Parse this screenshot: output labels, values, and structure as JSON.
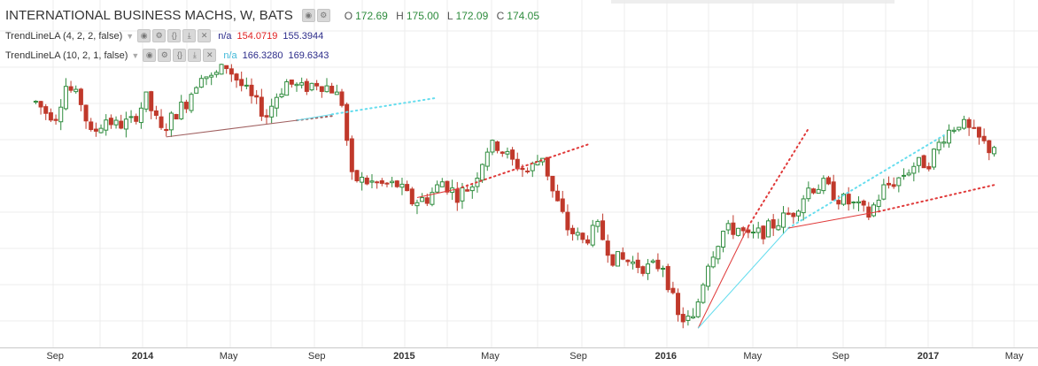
{
  "header": {
    "symbol": "INTERNATIONAL BUSINESS MACHS, W, BATS",
    "ohlc": [
      {
        "k": "O",
        "v": "172.69"
      },
      {
        "k": "H",
        "v": "175.00"
      },
      {
        "k": "L",
        "v": "172.09"
      },
      {
        "k": "C",
        "v": "174.05"
      }
    ]
  },
  "indicators": [
    {
      "name": "TrendLineLA (4, 2, 2, false)",
      "na": "n/a",
      "v1": "154.0719",
      "v2": "155.3944",
      "v1_color": "#e01e1e",
      "v2_color": "#2c2c8a"
    },
    {
      "name": "TrendLineLA (10, 2, 1, false)",
      "na": "n/a",
      "v1": "166.3280",
      "v2": "169.6343",
      "v1_color": "#2c2c8a",
      "v2_color": "#2c2c8a"
    }
  ],
  "colors": {
    "up": "#2f8c3e",
    "down": "#c0392b",
    "up_fill": "#ffffff",
    "grid": "#ececec",
    "trend1": "#e03a3a",
    "trend_early": "#a06060",
    "trend2": "#66ddee"
  },
  "chart_data": {
    "type": "candlestick",
    "title": "INTERNATIONAL BUSINESS MACHS, W, BATS",
    "x_ticks": [
      {
        "label": "Sep",
        "date": "2013-09-01",
        "year": false
      },
      {
        "label": "2014",
        "date": "2014-01-01",
        "year": true
      },
      {
        "label": "May",
        "date": "2014-05-01",
        "year": false
      },
      {
        "label": "Sep",
        "date": "2014-09-01",
        "year": false
      },
      {
        "label": "2015",
        "date": "2015-01-01",
        "year": true
      },
      {
        "label": "May",
        "date": "2015-05-01",
        "year": false
      },
      {
        "label": "Sep",
        "date": "2015-09-01",
        "year": false
      },
      {
        "label": "2016",
        "date": "2016-01-01",
        "year": true
      },
      {
        "label": "May",
        "date": "2016-05-01",
        "year": false
      },
      {
        "label": "Sep",
        "date": "2016-09-01",
        "year": false
      },
      {
        "label": "2017",
        "date": "2017-01-01",
        "year": true
      },
      {
        "label": "May",
        "date": "2017-05-01",
        "year": false
      }
    ],
    "ylim": [
      112,
      212
    ],
    "grid": true,
    "price_path": [
      [
        "2013-08-05",
        186
      ],
      [
        "2013-08-19",
        183
      ],
      [
        "2013-09-02",
        182
      ],
      [
        "2013-09-16",
        191
      ],
      [
        "2013-10-07",
        186
      ],
      [
        "2013-10-21",
        176
      ],
      [
        "2013-11-11",
        181
      ],
      [
        "2013-11-25",
        179
      ],
      [
        "2013-12-16",
        180
      ],
      [
        "2014-01-06",
        187
      ],
      [
        "2014-01-27",
        177
      ],
      [
        "2014-02-17",
        183
      ],
      [
        "2014-03-03",
        186
      ],
      [
        "2014-03-24",
        195
      ],
      [
        "2014-04-07",
        193
      ],
      [
        "2014-04-28",
        197
      ],
      [
        "2014-05-19",
        191
      ],
      [
        "2014-06-02",
        187
      ],
      [
        "2014-06-23",
        182
      ],
      [
        "2014-07-07",
        188
      ],
      [
        "2014-07-21",
        192
      ],
      [
        "2014-08-11",
        190
      ],
      [
        "2014-09-01",
        192
      ],
      [
        "2014-09-22",
        190
      ],
      [
        "2014-10-06",
        186
      ],
      [
        "2014-10-20",
        163
      ],
      [
        "2014-11-10",
        162
      ],
      [
        "2014-12-01",
        161
      ],
      [
        "2014-12-22",
        161
      ],
      [
        "2015-01-12",
        156
      ],
      [
        "2015-02-02",
        157
      ],
      [
        "2015-02-23",
        162
      ],
      [
        "2015-03-16",
        158
      ],
      [
        "2015-04-06",
        161
      ],
      [
        "2015-04-27",
        172
      ],
      [
        "2015-05-11",
        173
      ],
      [
        "2015-06-01",
        168
      ],
      [
        "2015-06-22",
        165
      ],
      [
        "2015-07-13",
        170
      ],
      [
        "2015-07-27",
        159
      ],
      [
        "2015-08-17",
        148
      ],
      [
        "2015-09-07",
        144
      ],
      [
        "2015-09-28",
        148
      ],
      [
        "2015-10-19",
        139
      ],
      [
        "2015-11-09",
        138
      ],
      [
        "2015-12-07",
        136
      ],
      [
        "2015-12-28",
        137
      ],
      [
        "2016-01-18",
        121
      ],
      [
        "2016-02-08",
        120
      ],
      [
        "2016-02-29",
        138
      ],
      [
        "2016-03-21",
        147
      ],
      [
        "2016-04-11",
        148
      ],
      [
        "2016-04-25",
        145
      ],
      [
        "2016-05-16",
        147
      ],
      [
        "2016-06-06",
        150
      ],
      [
        "2016-06-27",
        153
      ],
      [
        "2016-07-18",
        160
      ],
      [
        "2016-08-08",
        161
      ],
      [
        "2016-08-29",
        157
      ],
      [
        "2016-09-19",
        155
      ],
      [
        "2016-10-10",
        152
      ],
      [
        "2016-10-31",
        160
      ],
      [
        "2016-11-21",
        163
      ],
      [
        "2016-12-12",
        167
      ],
      [
        "2017-01-02",
        168
      ],
      [
        "2017-01-23",
        176
      ],
      [
        "2017-02-13",
        180
      ],
      [
        "2017-03-06",
        176
      ],
      [
        "2017-03-27",
        172
      ],
      [
        "2017-04-03",
        173
      ]
    ],
    "trend_lines": [
      {
        "series": "TrendLineLA (4, 2, 2, false)",
        "x": [
          "2014-02-03",
          "2014-08-04"
        ],
        "y": [
          175.5,
          180.5
        ],
        "ext_x": "2014-09-22",
        "ext_y": 181.8,
        "color": "#a06060"
      },
      {
        "series": "TrendLineLA (10, 2, 1, false)",
        "x": [
          "2014-08-04",
          "2014-09-22"
        ],
        "y": [
          180.5,
          182.3
        ],
        "ext_x": "2015-02-16",
        "ext_y": 187.3,
        "color": "#66ddee"
      },
      {
        "series": "TrendLineLA (4, 2, 2, false)",
        "x": [
          "2015-01-19",
          "2015-03-16"
        ],
        "y": [
          157.2,
          159.8
        ],
        "ext_x": "2015-09-14",
        "ext_y": 173.2,
        "color": "#e03a3a"
      },
      {
        "series": "TrendLineLA (4, 2, 2, false)",
        "x": [
          "2016-02-15",
          "2016-04-25"
        ],
        "y": [
          117.8,
          148.5
        ],
        "ext_x": "2016-07-18",
        "ext_y": 178,
        "color": "#e03a3a"
      },
      {
        "series": "TrendLineLA (10, 2, 1, false)",
        "x": [
          "2016-02-15",
          "2016-06-20"
        ],
        "y": [
          117.8,
          148.0
        ],
        "ext_x": "2017-01-23",
        "ext_y": 176,
        "color": "#66ddee"
      },
      {
        "series": "TrendLineLA (4, 2, 2, false)",
        "x": [
          "2016-06-20",
          "2016-10-24"
        ],
        "y": [
          148.0,
          153.0
        ],
        "ext_x": "2017-04-03",
        "ext_y": 161,
        "color": "#e03a3a"
      }
    ]
  }
}
